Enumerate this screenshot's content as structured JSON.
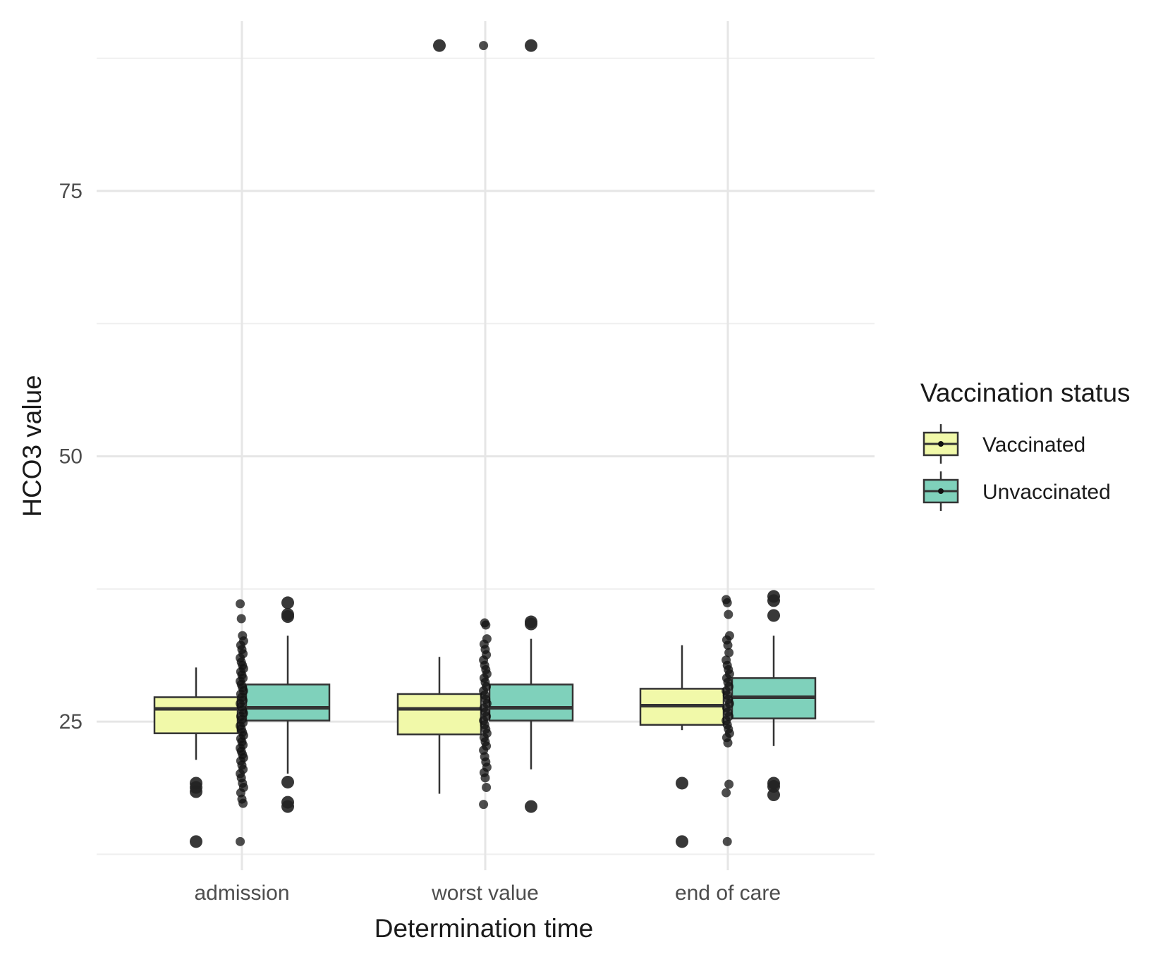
{
  "chart_data": {
    "type": "boxplot",
    "xlabel": "Determination time",
    "ylabel": "HCO3 value",
    "categories": [
      "admission",
      "worst value",
      "end of care"
    ],
    "ylim": [
      11,
      91
    ],
    "yticks": [
      25,
      50,
      75
    ],
    "grid": true,
    "legend": {
      "title": "Vaccination status",
      "placement": "right"
    },
    "series": [
      {
        "name": "Vaccinated",
        "color": "#f1f9a9",
        "boxes": [
          {
            "min": 21.4,
            "q1": 23.9,
            "median": 26.2,
            "q3": 27.3,
            "max": 30.1,
            "outliers": [
              19.2,
              18.8,
              18.4,
              13.7
            ]
          },
          {
            "min": 18.2,
            "q1": 23.8,
            "median": 26.2,
            "q3": 27.6,
            "max": 31.1,
            "outliers": [
              88.7
            ]
          },
          {
            "min": 24.2,
            "q1": 24.7,
            "median": 26.5,
            "q3": 28.1,
            "max": 32.2,
            "outliers": [
              19.2,
              13.7
            ]
          }
        ]
      },
      {
        "name": "Unvaccinated",
        "color": "#7fd1bb",
        "boxes": [
          {
            "min": 20.1,
            "q1": 25.1,
            "median": 26.3,
            "q3": 28.5,
            "max": 33.1,
            "outliers": [
              36.2,
              35.1,
              34.9,
              19.3,
              17.4,
              17.0
            ]
          },
          {
            "min": 20.5,
            "q1": 25.1,
            "median": 26.3,
            "q3": 28.5,
            "max": 32.8,
            "outliers": [
              88.7,
              34.4,
              34.2,
              17.0
            ]
          },
          {
            "min": 22.7,
            "q1": 25.3,
            "median": 27.3,
            "q3": 29.1,
            "max": 33.1,
            "outliers": [
              36.8,
              36.4,
              35.0,
              19.2,
              18.9,
              18.1
            ]
          }
        ]
      }
    ],
    "jitter_points": [
      {
        "category": "admission",
        "values": [
          36.1,
          34.7,
          33.1,
          32.6,
          32.2,
          31.8,
          31.4,
          31.0,
          30.6,
          30.3,
          30.0,
          29.7,
          29.4,
          29.1,
          28.8,
          28.5,
          28.2,
          27.9,
          27.6,
          27.3,
          27.0,
          26.7,
          26.4,
          26.1,
          25.8,
          25.5,
          25.2,
          24.9,
          24.6,
          24.3,
          24.0,
          23.7,
          23.4,
          23.1,
          22.8,
          22.5,
          22.2,
          21.9,
          21.6,
          21.3,
          20.9,
          20.5,
          20.1,
          19.7,
          19.2,
          18.8,
          18.3,
          17.7,
          17.3,
          13.7
        ]
      },
      {
        "category": "worst value",
        "values": [
          88.7,
          34.3,
          34.1,
          32.8,
          32.3,
          31.8,
          31.3,
          30.8,
          30.3,
          29.9,
          29.5,
          29.1,
          28.7,
          28.3,
          27.9,
          27.5,
          27.1,
          26.7,
          26.3,
          25.9,
          25.5,
          25.1,
          24.7,
          24.3,
          23.9,
          23.5,
          23.1,
          22.7,
          22.3,
          21.7,
          21.2,
          20.7,
          20.2,
          19.7,
          18.8,
          17.2
        ]
      },
      {
        "category": "end of care",
        "values": [
          36.5,
          36.2,
          35.1,
          33.1,
          32.7,
          32.2,
          31.5,
          30.8,
          30.3,
          29.9,
          29.5,
          29.1,
          28.7,
          28.3,
          27.9,
          27.5,
          27.1,
          26.7,
          26.3,
          25.9,
          25.5,
          25.1,
          24.7,
          24.3,
          23.9,
          23.5,
          23.0,
          19.1,
          18.3,
          13.7
        ]
      }
    ]
  }
}
